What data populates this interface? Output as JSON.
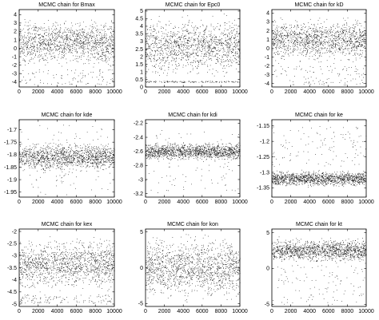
{
  "figure": {
    "chart_data": [
      {
        "type": "scatter",
        "title": "MCMC chain for Bmax",
        "x_ticks": [
          0,
          2000,
          4000,
          6000,
          8000,
          10000
        ],
        "xlim": [
          0,
          10000
        ],
        "y_ticks": [
          -4,
          -3,
          -2,
          -1,
          0,
          1,
          2,
          3,
          4
        ],
        "ylim": [
          -4.6,
          4.6
        ],
        "grid": false,
        "legend": "none",
        "marker_color": "#000000",
        "points": 10000,
        "distribution": {
          "dense_range": [
            -2.5,
            3.8
          ],
          "center": 1.5,
          "sparse_tail": [
            -4.3,
            -2.5
          ]
        }
      },
      {
        "type": "scatter",
        "title": "MCMC chain for Epc0",
        "x_ticks": [
          0,
          2000,
          4000,
          6000,
          8000,
          10000
        ],
        "xlim": [
          0,
          10000
        ],
        "y_ticks": [
          0,
          0.5,
          1,
          1.5,
          2,
          2.5,
          3,
          3.5,
          4,
          4.5,
          5
        ],
        "ylim": [
          0,
          5.1
        ],
        "grid": false,
        "legend": "none",
        "marker_color": "#000000",
        "points": 10000,
        "distribution": {
          "dense_range": [
            0.4,
            5.0
          ],
          "center": 2.7,
          "sparse_tail": [
            0.3,
            0.4
          ]
        }
      },
      {
        "type": "scatter",
        "title": "MCMC chain for kD",
        "x_ticks": [
          0,
          2000,
          4000,
          6000,
          8000,
          10000
        ],
        "xlim": [
          0,
          10000
        ],
        "y_ticks": [
          -4,
          -3,
          -2,
          -1,
          0,
          1,
          2,
          3,
          4
        ],
        "ylim": [
          -4.4,
          4.4
        ],
        "grid": false,
        "legend": "none",
        "marker_color": "#000000",
        "points": 10000,
        "distribution": {
          "dense_range": [
            -2.0,
            3.9
          ],
          "center": 1.5,
          "sparse_tail": [
            -4.2,
            -2.0
          ]
        }
      },
      {
        "type": "scatter",
        "title": "MCMC chain for kde",
        "x_ticks": [
          0,
          2000,
          4000,
          6000,
          8000,
          10000
        ],
        "xlim": [
          0,
          10000
        ],
        "y_ticks": [
          -1.95,
          -1.9,
          -1.85,
          -1.8,
          -1.75,
          -1.7
        ],
        "ylim": [
          -1.97,
          -1.66
        ],
        "grid": false,
        "legend": "none",
        "marker_color": "#000000",
        "points": 10000,
        "distribution": {
          "dense_range": [
            -1.88,
            -1.74
          ],
          "center": -1.8,
          "sparse_tail": [
            -1.96,
            -1.68
          ]
        }
      },
      {
        "type": "scatter",
        "title": "MCMC chain for kdi",
        "x_ticks": [
          0,
          2000,
          4000,
          6000,
          8000,
          10000
        ],
        "xlim": [
          0,
          10000
        ],
        "y_ticks": [
          -3.2,
          -3,
          -2.8,
          -2.6,
          -2.4,
          -2.2
        ],
        "ylim": [
          -3.25,
          -2.15
        ],
        "grid": false,
        "legend": "none",
        "marker_color": "#000000",
        "points": 10000,
        "distribution": {
          "dense_range": [
            -2.75,
            -2.45
          ],
          "center": -2.6,
          "sparse_tail": [
            -3.2,
            -2.3
          ]
        }
      },
      {
        "type": "scatter",
        "title": "MCMC chain for ke",
        "x_ticks": [
          0,
          2000,
          4000,
          6000,
          8000,
          10000
        ],
        "xlim": [
          0,
          10000
        ],
        "y_ticks": [
          -1.35,
          -1.3,
          -1.25,
          -1.2,
          -1.15
        ],
        "ylim": [
          -1.38,
          -1.13
        ],
        "grid": false,
        "legend": "none",
        "marker_color": "#000000",
        "points": 10000,
        "distribution": {
          "dense_range": [
            -1.35,
            -1.29
          ],
          "center": -1.32,
          "sparse_tail": [
            -1.28,
            -1.15
          ]
        }
      },
      {
        "type": "scatter",
        "title": "MCMC chain for kex",
        "x_ticks": [
          0,
          2000,
          4000,
          6000,
          8000,
          10000
        ],
        "xlim": [
          0,
          10000
        ],
        "y_ticks": [
          -5,
          -4.5,
          -4,
          -3.5,
          -3,
          -2.5,
          -2
        ],
        "ylim": [
          -5.1,
          -1.9
        ],
        "grid": false,
        "legend": "none",
        "marker_color": "#000000",
        "points": 10000,
        "distribution": {
          "dense_range": [
            -4.6,
            -2.1
          ],
          "center": -3.0,
          "sparse_tail": [
            -5.0,
            -4.6
          ]
        }
      },
      {
        "type": "scatter",
        "title": "MCMC chain for kon",
        "x_ticks": [
          0,
          2000,
          4000,
          6000,
          8000,
          10000
        ],
        "xlim": [
          0,
          10000
        ],
        "y_ticks": [
          -5,
          0,
          5
        ],
        "ylim": [
          -5.4,
          5.4
        ],
        "grid": false,
        "legend": "none",
        "marker_color": "#000000",
        "points": 10000,
        "distribution": {
          "dense_range": [
            -5.0,
            5.0
          ],
          "center": 0,
          "pattern": "uniform with vertical streaks"
        }
      },
      {
        "type": "scatter",
        "title": "MCMC chain for kt",
        "x_ticks": [
          0,
          2000,
          4000,
          6000,
          8000,
          10000
        ],
        "xlim": [
          0,
          10000
        ],
        "y_ticks": [
          -5,
          0,
          5
        ],
        "ylim": [
          -5.3,
          5.5
        ],
        "grid": false,
        "legend": "none",
        "marker_color": "#000000",
        "points": 10000,
        "distribution": {
          "dense_range": [
            0.5,
            4.5
          ],
          "center": 2.8,
          "sparse_tail": [
            -5.0,
            0.5
          ]
        }
      }
    ]
  }
}
